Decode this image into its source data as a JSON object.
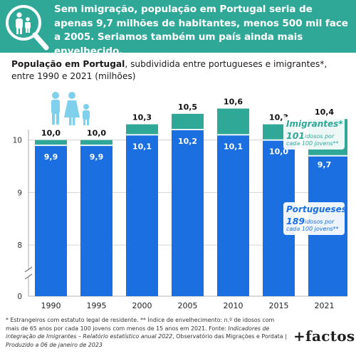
{
  "header": {
    "title": "Sem imigração, população em Portugal seria de apenas 9,7 milhões de habitantes, menos 500 mil face a 2005. Seriamos também um país ainda mais envelhecido."
  },
  "subtitle": {
    "bold": "População em Portugal",
    "rest": ", subdividida entre portugueses e imigrantes*, entre 1990 e 2021 (milhões)"
  },
  "chart_data": {
    "type": "bar",
    "stacked": true,
    "categories": [
      "1990",
      "1995",
      "2000",
      "2005",
      "2010",
      "2015",
      "2021"
    ],
    "series": [
      {
        "name": "Portugueses",
        "values": [
          9.9,
          9.9,
          10.1,
          10.2,
          10.1,
          10.0,
          9.7
        ],
        "labels": [
          "9,9",
          "9,9",
          "10,1",
          "10,2",
          "10,1",
          "10,0",
          "9,7"
        ],
        "color": "#1b6fe0"
      },
      {
        "name": "Imigrantes*",
        "values": [
          0.1,
          0.1,
          0.2,
          0.3,
          0.5,
          0.3,
          0.7
        ],
        "color": "#2fa898"
      }
    ],
    "totals": [
      10.0,
      10.0,
      10.3,
      10.5,
      10.6,
      10.3,
      10.4
    ],
    "total_labels": [
      "10,0",
      "10,0",
      "10,3",
      "10,5",
      "10,6",
      "10,3",
      "10,4"
    ],
    "y_ticks": [
      "8",
      "9",
      "10"
    ],
    "y_axis_break": true,
    "ylim": [
      7,
      10.8
    ],
    "legend": [
      {
        "name": "Imigrantes*",
        "value": "101",
        "line1": "idosos por",
        "line2": "cada 100 jovens**",
        "color": "#2fa898"
      },
      {
        "name": "Portugueses",
        "value": "189",
        "line1": "idosos por",
        "line2": "cada 100 jovens**",
        "color": "#1b6fe0"
      }
    ],
    "y_zero_label": "0"
  },
  "footnote": {
    "line1": "* Estrangeiros com estatuto legal de residente. ** Índice de envelhecimento: n.º de idosos com",
    "line2": "mais de 65 anos por cada 100 jovens com menos de 15 anos em 2021. Fonte:",
    "line2_em": "Indicadores de",
    "line3_em": "integração de Imigrantes – Relatório estatístico anual 2022",
    "line3": ", Observatório das Migrações e Pordata |",
    "line4_em": "Produzido a 06 de janeiro de 2023"
  },
  "logo": {
    "text": "+factos"
  },
  "colors": {
    "header": "#2fa898",
    "portugueses": "#1b6fe0",
    "imigrantes": "#2fa898",
    "gap": "#dcdcdc"
  },
  "icons": {
    "header": "magnifier-family-icon",
    "chart": "family-icon"
  }
}
